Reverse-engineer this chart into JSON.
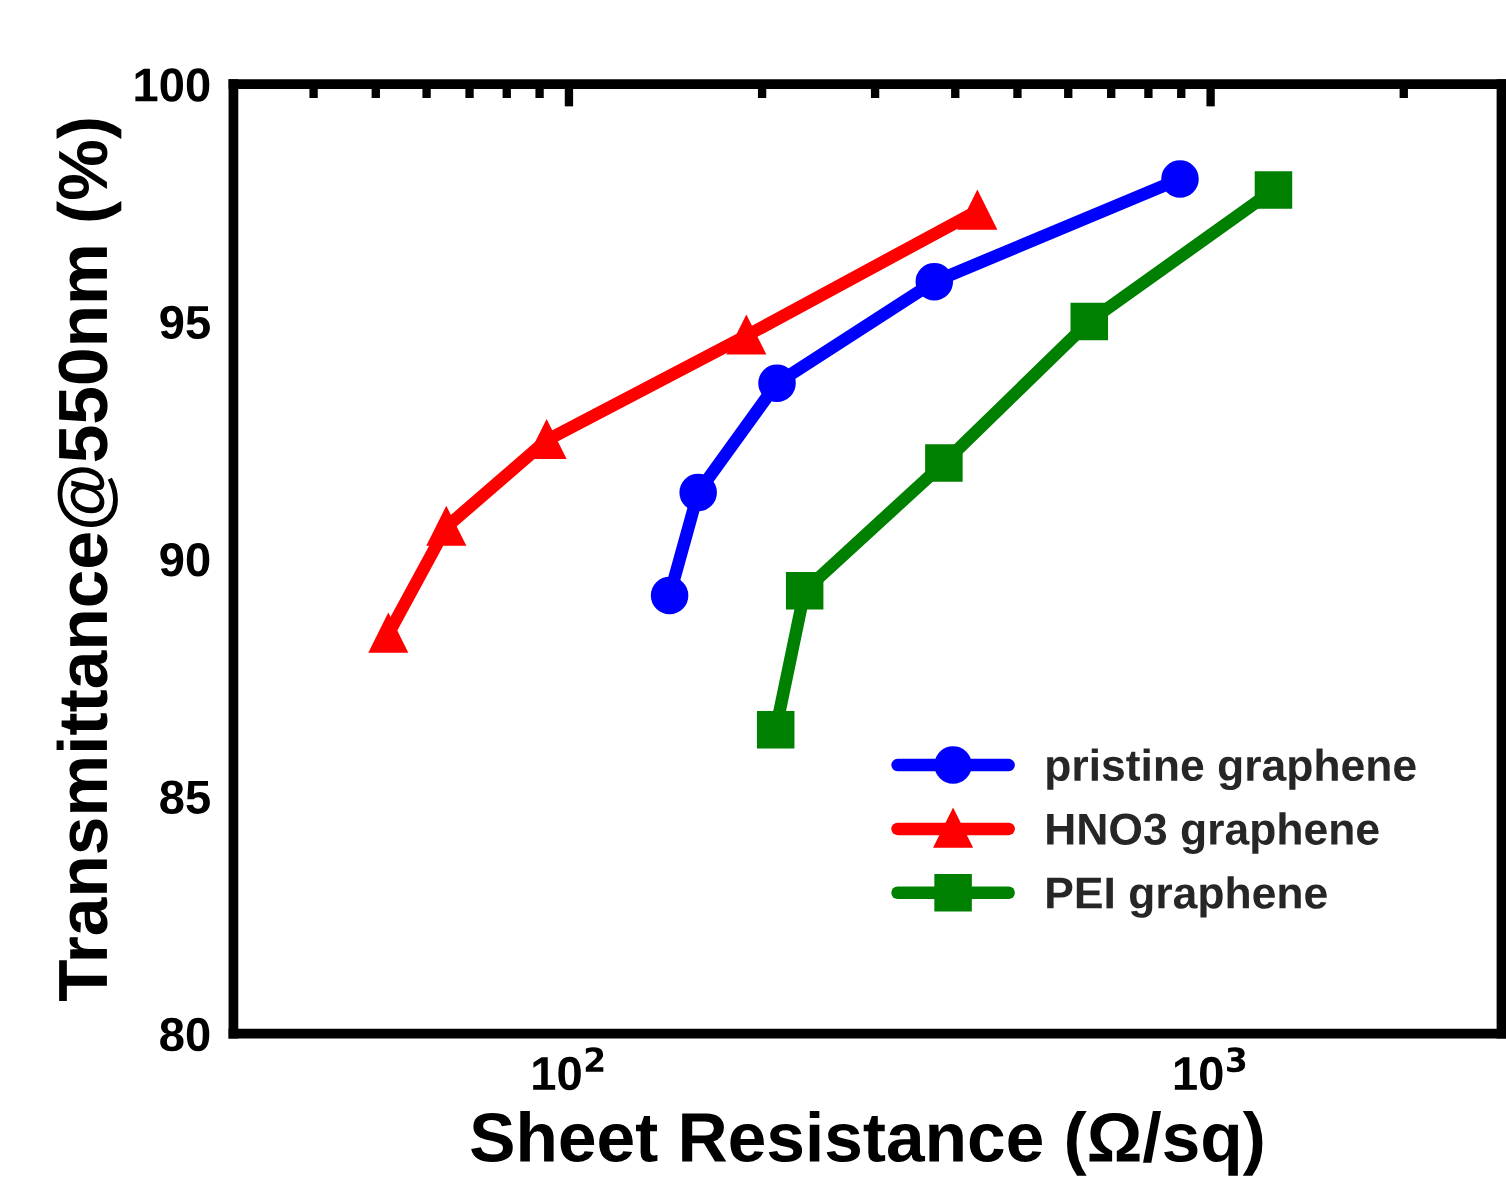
{
  "chart_data": {
    "type": "line",
    "xlabel": "Sheet Resistance (Ω/sq)",
    "ylabel": "Transmittance@550nm (%)",
    "log": "x",
    "xlim": [
      30,
      2840
    ],
    "ylim": [
      80,
      100
    ],
    "xticks": [
      {
        "value": 100,
        "label": "10$^{2}$"
      },
      {
        "value": 1000,
        "label": "10$^{3}$"
      }
    ],
    "yticks": [
      80,
      85,
      90,
      95,
      100
    ],
    "grid": false,
    "legend": "bottom right",
    "series": [
      {
        "name": "pristine graphene",
        "color": "#0000ff",
        "marker": "circle",
        "x": [
          143.5,
          159,
          211,
          371,
          896
        ],
        "values": [
          89.23,
          91.4,
          93.7,
          95.84,
          98.0
        ]
      },
      {
        "name": "HNO3 graphene",
        "color": "#ff0000",
        "marker": "triangle",
        "x": [
          52.3,
          64.4,
          92.3,
          189,
          433
        ],
        "values": [
          88.42,
          90.67,
          92.5,
          94.7,
          97.33
        ]
      },
      {
        "name": "PEI graphene",
        "color": "#008000",
        "marker": "square",
        "x": [
          210,
          233,
          384,
          647,
          1253
        ],
        "values": [
          86.4,
          89.33,
          92.02,
          95.0,
          97.77
        ]
      }
    ]
  }
}
